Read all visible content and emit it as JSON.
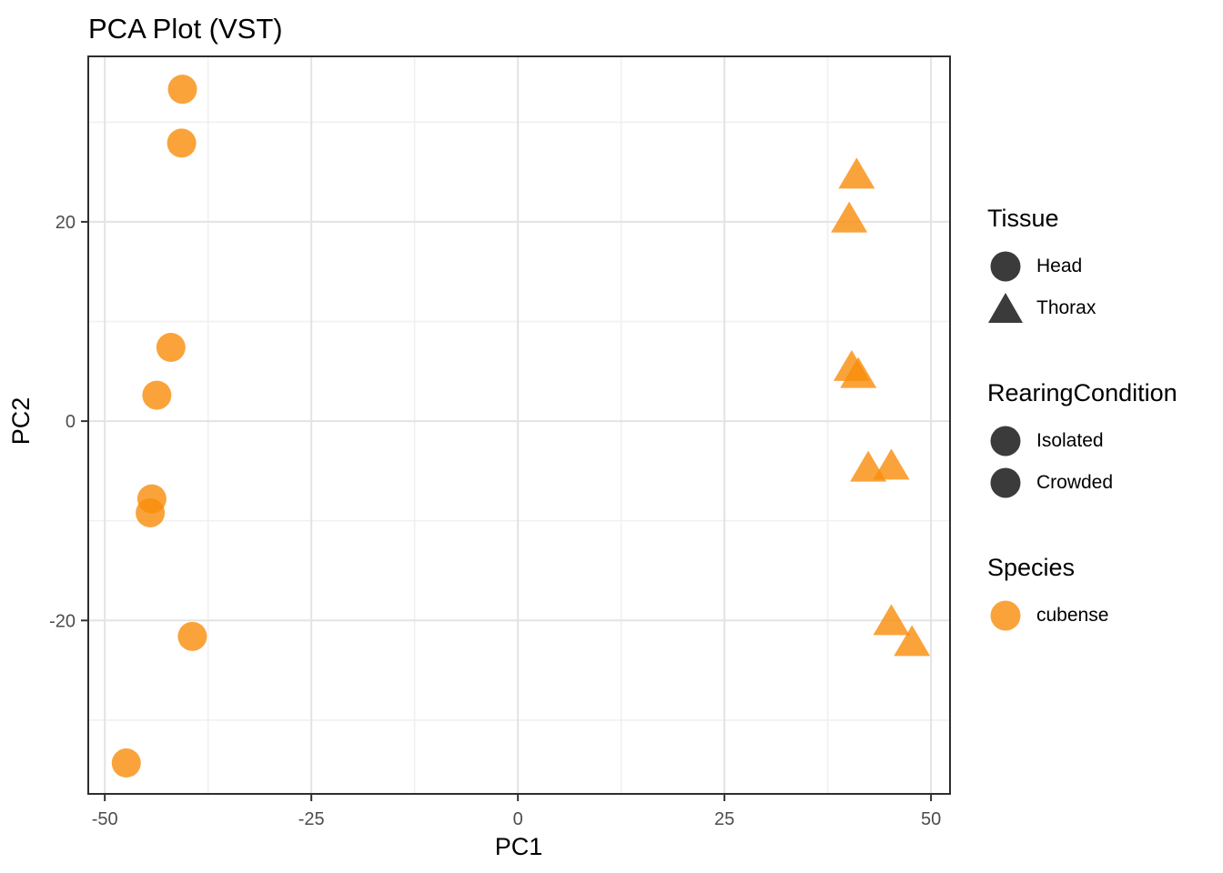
{
  "figure": {
    "title": "PCA Plot (VST)",
    "background_color": "#FFFFFF"
  },
  "chart_data": {
    "type": "scatter",
    "title": "PCA Plot (VST)",
    "xlabel": "PC1",
    "ylabel": "PC2",
    "xlim": [
      -52.0,
      52.3
    ],
    "ylim": [
      -37.4,
      36.6
    ],
    "x_ticks": [
      -50,
      -25,
      0,
      25,
      50
    ],
    "y_ticks": [
      20,
      0,
      -20
    ],
    "x_minor_gridlines": [
      -37.5,
      -12.5,
      12.5,
      37.5
    ],
    "y_minor_gridlines": [
      30,
      10,
      -10,
      -30
    ],
    "grid": true,
    "legend_position": "right",
    "point_color": "#F98C0A",
    "point_opacity": 0.8,
    "colors": {
      "major_gridline": "#E3E3E3",
      "minor_gridline": "#F0F0F0",
      "panel_border": "#2E2E2E",
      "tick_text": "#4D4D4D",
      "legend_key_dark": "#3B3B3B",
      "species_orange": "#F98C0A"
    },
    "series": [
      {
        "name": "Head",
        "shape": "circle",
        "points": [
          [
            -40.6,
            33.3
          ],
          [
            -40.7,
            27.9
          ],
          [
            -42.0,
            7.4
          ],
          [
            -43.7,
            2.6
          ],
          [
            -44.3,
            -7.8
          ],
          [
            -44.5,
            -9.2
          ],
          [
            -39.4,
            -21.6
          ],
          [
            -47.4,
            -34.3
          ]
        ]
      },
      {
        "name": "Thorax",
        "shape": "triangle",
        "points": [
          [
            41.0,
            24.7
          ],
          [
            40.1,
            20.3
          ],
          [
            40.4,
            5.4
          ],
          [
            41.2,
            4.7
          ],
          [
            42.4,
            -4.7
          ],
          [
            45.2,
            -4.5
          ],
          [
            45.2,
            -20.1
          ],
          [
            47.7,
            -22.2
          ]
        ]
      }
    ]
  },
  "legend": {
    "sections": [
      {
        "title": "Tissue",
        "items": [
          {
            "label": "Head",
            "icon": "circle",
            "color": "#3B3B3B",
            "opacity": 1
          },
          {
            "label": "Thorax",
            "icon": "triangle",
            "color": "#3B3B3B",
            "opacity": 1
          }
        ]
      },
      {
        "title": "RearingCondition",
        "items": [
          {
            "label": "Isolated",
            "icon": "circle",
            "color": "#3B3B3B",
            "opacity": 1
          },
          {
            "label": "Crowded",
            "icon": "circle",
            "color": "#3B3B3B",
            "opacity": 1
          }
        ]
      },
      {
        "title": "Species",
        "items": [
          {
            "label": "cubense",
            "icon": "circle",
            "color": "#F98C0A",
            "opacity": 0.8
          }
        ]
      }
    ]
  }
}
